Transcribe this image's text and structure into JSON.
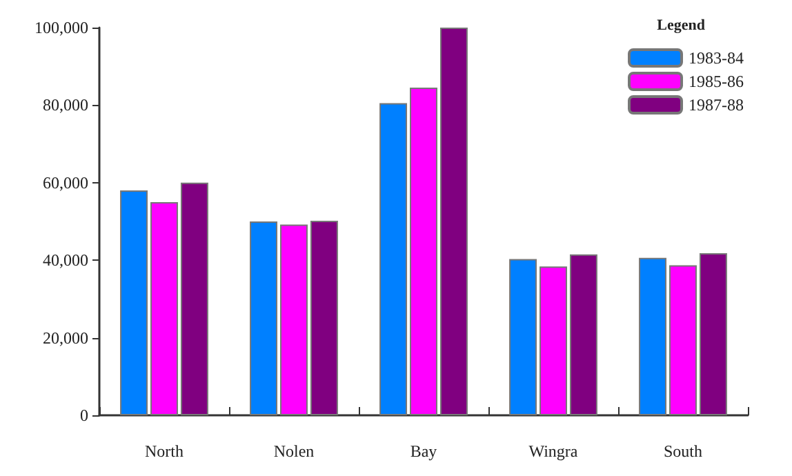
{
  "chart_data": {
    "type": "bar",
    "categories": [
      "North",
      "Nolen",
      "Bay",
      "Wingra",
      "South"
    ],
    "series": [
      {
        "name": "1983-84",
        "color": "#0080ff",
        "values": [
          58000,
          50000,
          80500,
          40300,
          40600
        ]
      },
      {
        "name": "1985-86",
        "color": "#ff00ff",
        "values": [
          55000,
          49200,
          84500,
          38400,
          38700
        ]
      },
      {
        "name": "1987-88",
        "color": "#800080",
        "values": [
          60000,
          50200,
          100000,
          41500,
          41800
        ]
      }
    ],
    "ylim": [
      0,
      100000
    ],
    "yticks": [
      {
        "value": 0,
        "label": "0"
      },
      {
        "value": 20000,
        "label": "20,000"
      },
      {
        "value": 40000,
        "label": "40,000"
      },
      {
        "value": 60000,
        "label": "60,000"
      },
      {
        "value": 80000,
        "label": "80,000"
      },
      {
        "value": 100000,
        "label": "100,000"
      }
    ],
    "grid": false,
    "legend": "top right",
    "legend_title": "Legend"
  }
}
